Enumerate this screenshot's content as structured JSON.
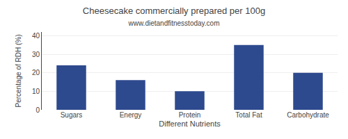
{
  "chart_data": {
    "type": "bar",
    "title": "Cheesecake commercially prepared per 100g",
    "subtitle": "www.dietandfitnesstoday.com",
    "xlabel": "Different Nutrients",
    "ylabel": "Percentage of RDH (%)",
    "categories": [
      "Sugars",
      "Energy",
      "Protein",
      "Total Fat",
      "Carbohydrate"
    ],
    "values": [
      24,
      16,
      10,
      35,
      20
    ],
    "color": "#2e4a8e",
    "ylim": [
      0,
      42
    ],
    "yticks": [
      0,
      10,
      20,
      30,
      40
    ],
    "grid": true
  }
}
